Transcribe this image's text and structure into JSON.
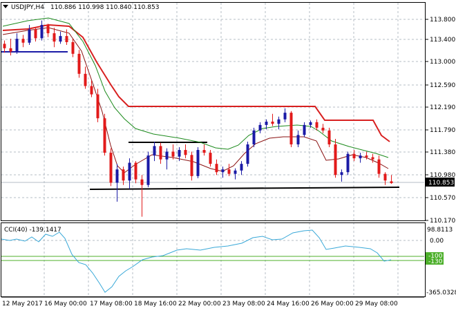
{
  "header": {
    "symbol": "USDJPY,H4",
    "ohlc": "110.886 110.998 110.840 110.853"
  },
  "price_axis": {
    "labels": [
      "113.800",
      "113.400",
      "113.000",
      "112.590",
      "112.190",
      "111.790",
      "111.380",
      "110.980",
      "110.570",
      "110.170"
    ],
    "current": "110.853"
  },
  "cci": {
    "title": "CCI(40) -139.1417",
    "labels": [
      "98.8113",
      "0.00",
      "-100",
      "-130",
      "-365.0328"
    ]
  },
  "time_axis": {
    "labels": [
      "12 May 2017",
      "16 May 00:00",
      "17 May 08:00",
      "18 May 16:00",
      "22 May 00:00",
      "23 May 08:00",
      "24 May 16:00",
      "26 May 00:00",
      "29 May 08:00"
    ]
  },
  "colors": {
    "bull": "#1a1aa6",
    "bear": "#e21a1a",
    "ma_red": "#d82020",
    "ma_dark": "#8a1010",
    "ma_green": "#1b8a1b",
    "cci_line": "#38a8d8",
    "cci_level": "#4caf2a"
  },
  "chart_data": {
    "type": "candlestick",
    "symbol": "USDJPY",
    "timeframe": "H4",
    "ylim": [
      110.05,
      114.0
    ],
    "candles": [
      [
        113.36,
        113.42,
        113.2,
        113.28
      ],
      [
        113.28,
        113.45,
        113.15,
        113.22
      ],
      [
        113.22,
        113.55,
        113.18,
        113.45
      ],
      [
        113.45,
        113.52,
        113.3,
        113.38
      ],
      [
        113.38,
        113.7,
        113.34,
        113.62
      ],
      [
        113.62,
        113.66,
        113.4,
        113.46
      ],
      [
        113.46,
        113.78,
        113.42,
        113.7
      ],
      [
        113.7,
        113.72,
        113.48,
        113.55
      ],
      [
        113.55,
        113.65,
        113.3,
        113.4
      ],
      [
        113.4,
        113.58,
        113.36,
        113.5
      ],
      [
        113.5,
        113.62,
        113.34,
        113.39
      ],
      [
        113.39,
        113.45,
        113.12,
        113.18
      ],
      [
        113.18,
        113.25,
        112.75,
        112.82
      ],
      [
        112.82,
        112.95,
        112.55,
        112.6
      ],
      [
        112.6,
        112.7,
        112.4,
        112.45
      ],
      [
        112.45,
        112.55,
        111.95,
        112.02
      ],
      [
        112.02,
        112.1,
        111.35,
        111.4
      ],
      [
        111.4,
        111.48,
        110.8,
        110.86
      ],
      [
        110.86,
        111.2,
        110.52,
        111.1
      ],
      [
        111.1,
        111.15,
        110.82,
        110.9
      ],
      [
        110.9,
        111.3,
        110.75,
        111.22
      ],
      [
        111.22,
        111.25,
        110.85,
        110.92
      ],
      [
        110.92,
        111.0,
        110.25,
        110.82
      ],
      [
        110.82,
        111.42,
        110.78,
        111.35
      ],
      [
        111.35,
        111.6,
        111.25,
        111.52
      ],
      [
        111.52,
        111.58,
        111.2,
        111.28
      ],
      [
        111.28,
        111.48,
        111.1,
        111.42
      ],
      [
        111.42,
        111.55,
        111.28,
        111.33
      ],
      [
        111.33,
        111.5,
        111.25,
        111.45
      ],
      [
        111.45,
        111.55,
        111.3,
        111.36
      ],
      [
        111.36,
        111.42,
        110.9,
        110.98
      ],
      [
        110.98,
        111.5,
        110.94,
        111.45
      ],
      [
        111.45,
        111.55,
        111.35,
        111.4
      ],
      [
        111.4,
        111.45,
        111.15,
        111.2
      ],
      [
        111.2,
        111.28,
        111.0,
        111.05
      ],
      [
        111.05,
        111.15,
        110.95,
        111.1
      ],
      [
        111.1,
        111.2,
        110.98,
        111.02
      ],
      [
        111.02,
        111.12,
        110.92,
        111.08
      ],
      [
        111.08,
        111.25,
        111.0,
        111.2
      ],
      [
        111.2,
        111.6,
        111.15,
        111.55
      ],
      [
        111.55,
        111.85,
        111.5,
        111.8
      ],
      [
        111.8,
        111.95,
        111.75,
        111.9
      ],
      [
        111.9,
        112.0,
        111.82,
        111.96
      ],
      [
        111.96,
        112.1,
        111.88,
        111.92
      ],
      [
        111.92,
        112.05,
        111.82,
        112.0
      ],
      [
        112.0,
        112.2,
        111.95,
        112.12
      ],
      [
        112.12,
        112.15,
        111.5,
        111.55
      ],
      [
        111.55,
        111.8,
        111.5,
        111.72
      ],
      [
        111.72,
        111.95,
        111.68,
        111.9
      ],
      [
        111.9,
        111.98,
        111.85,
        111.95
      ],
      [
        111.95,
        112.0,
        111.8,
        111.85
      ],
      [
        111.85,
        111.92,
        111.75,
        111.8
      ],
      [
        111.8,
        111.85,
        111.5,
        111.55
      ],
      [
        111.55,
        111.65,
        110.95,
        111.0
      ],
      [
        111.0,
        111.1,
        110.88,
        111.05
      ],
      [
        111.05,
        111.42,
        111.0,
        111.38
      ],
      [
        111.38,
        111.45,
        111.25,
        111.3
      ],
      [
        111.3,
        111.4,
        111.22,
        111.35
      ],
      [
        111.35,
        111.42,
        111.28,
        111.32
      ],
      [
        111.32,
        111.38,
        111.22,
        111.28
      ],
      [
        111.28,
        111.35,
        110.95,
        111.02
      ],
      [
        111.02,
        111.05,
        110.82,
        110.9
      ],
      [
        110.886,
        110.998,
        110.84,
        110.853
      ]
    ]
  }
}
